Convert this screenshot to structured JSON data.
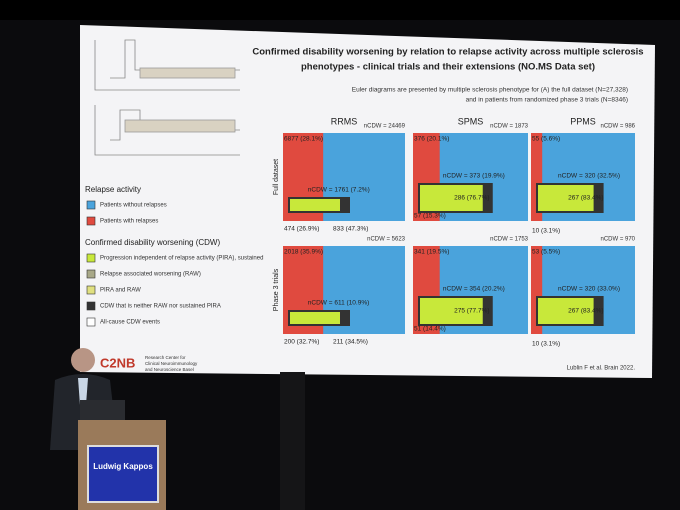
{
  "slide": {
    "title_lines": [
      "Confirmed disability worsening by relation to relapse activity across multiple sclerosis",
      "phenotypes - clinical trials and their extensions (NO.MS Data set)"
    ],
    "subtitle_lines": [
      "Euler diagrams are presented by multiple sclerosis phenotype for (A) the full dataset (N=27,328)",
      "and in patients from randomized phase 3 trials (N=8346)"
    ],
    "columns": [
      "RRMS",
      "SPMS",
      "PPMS"
    ],
    "rows": [
      "Full dataset",
      "Phase 3 trials"
    ],
    "panels": [
      [
        {
          "total": "nCDW = 24469",
          "relapse": "6877 (28.1%)",
          "cdw": "nCDW = 1761 (7.2%)",
          "raw": "474 (26.9%)",
          "pira": "833 (47.3%)"
        },
        {
          "total": "nCDW = 1873",
          "relapse": "376 (20.1%)",
          "cdw": "nCDW = 373 (19.9%)",
          "pira": "286 (76.7%)",
          "raw": "57 (15.3%)"
        },
        {
          "total": "nCDW = 986",
          "relapse": "55 (5.6%)",
          "cdw": "nCDW = 320 (32.5%)",
          "pira": "267 (83.4%)",
          "raw": "10 (3.1%)"
        }
      ],
      [
        {
          "total": "nCDW = 5623",
          "relapse": "2018 (35.9%)",
          "cdw": "nCDW = 611 (10.9%)",
          "raw": "200 (32.7%)",
          "pira": "211 (34.5%)"
        },
        {
          "total": "nCDW = 1753",
          "relapse": "341 (19.5%)",
          "cdw": "nCDW = 354 (20.2%)",
          "pira": "275 (77.7%)",
          "raw": "51 (14.4%)"
        },
        {
          "total": "nCDW = 970",
          "relapse": "53 (5.5%)",
          "cdw": "nCDW = 320 (33.0%)",
          "pira": "267 (83.4%)",
          "raw": "10 (3.1%)"
        }
      ]
    ],
    "legend": [
      {
        "heading": "Relapse activity",
        "items": [
          "Patients without relapses",
          "Patients with relapses"
        ]
      },
      {
        "heading": "Confirmed disability worsening (CDW)",
        "items": [
          "Progression independent of relapse activity (PIRA), sustained",
          "Relapse associated worsening (RAW)",
          "PIRA and RAW",
          "CDW that is neither RAW nor sustained PIRA",
          "All-cause CDW events"
        ]
      }
    ],
    "citation": "Lublin F et al. Brain 2022.",
    "logo": "C2NB",
    "logo_text": [
      "Research Center for",
      "Clinical Neuroimmunology",
      "and Neuroscience Basel"
    ]
  },
  "speaker": {
    "name": "Ludwig Kappos"
  }
}
